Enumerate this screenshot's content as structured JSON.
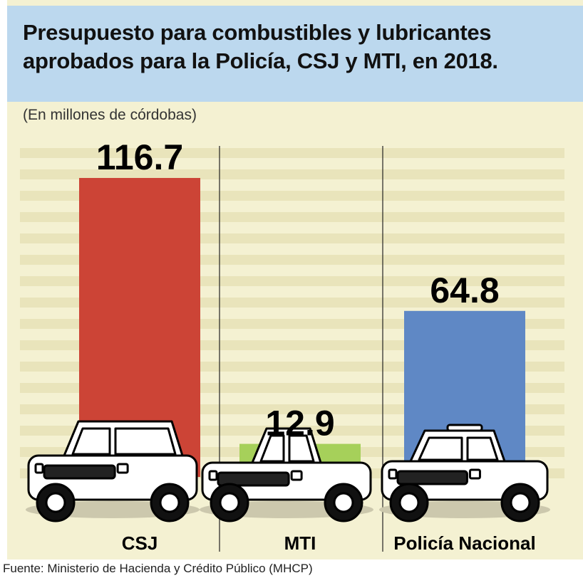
{
  "title": "Presupuesto para combustibles y lubricantes aprobados para la Policía, CSJ y MTI, en 2018.",
  "subtitle": "(En millones de córdobas)",
  "source": "Fuente: Ministerio de Hacienda y Crédito Público (MHCP)",
  "colors": {
    "background": "#f4f1d2",
    "title_band": "#bcd8ee",
    "stripe": "#e9e4bb"
  },
  "chart_data": {
    "type": "bar",
    "title": "Presupuesto para combustibles y lubricantes aprobados para la Policía, CSJ y MTI, en 2018.",
    "subtitle": "(En millones de córdobas)",
    "categories": [
      "CSJ",
      "MTI",
      "Policía Nacional"
    ],
    "values": [
      116.7,
      12.9,
      64.8
    ],
    "value_labels": [
      "116.7",
      "12.9",
      "64.8"
    ],
    "colors": [
      "#cc4436",
      "#a6d05a",
      "#5f88c5"
    ],
    "xlabel": "",
    "ylabel": "",
    "ylim": [
      0,
      116.7
    ],
    "grid": false,
    "legend": "none",
    "icons": [
      "suv-icon",
      "pickup-truck-icon",
      "police-pickup-icon"
    ]
  }
}
